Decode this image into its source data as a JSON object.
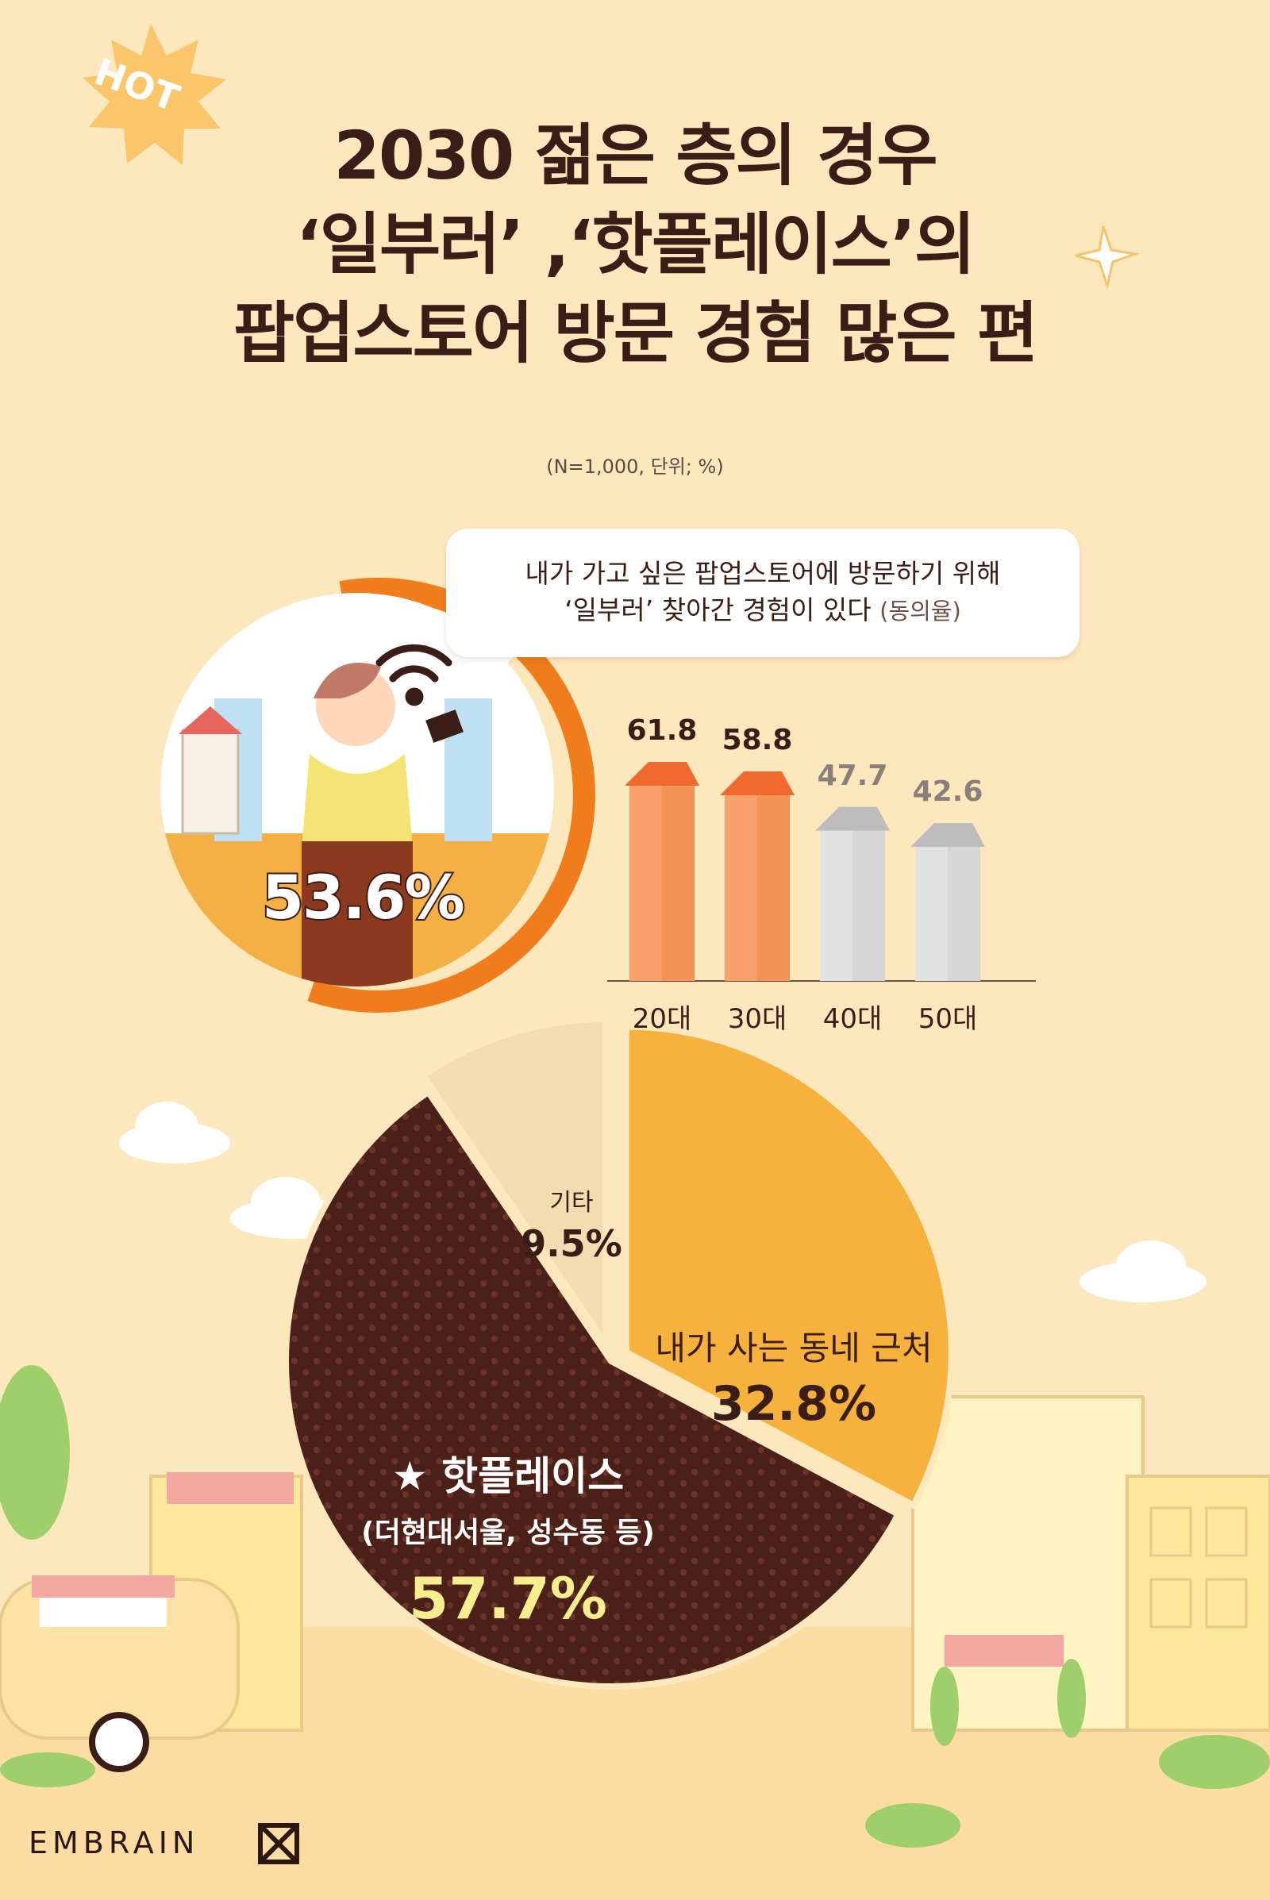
{
  "badge": {
    "hot": "HOT"
  },
  "title": {
    "line1": "2030 젊은 층의 경우",
    "line2": "‘일부러’ ,‘핫플레이스’의",
    "line3": "팝업스토어 방문 경험 많은 편"
  },
  "note": "(N=1,000, 단위; %)",
  "question": {
    "line1": "내가 가고 싶은 팝업스토어에 방문하기 위해",
    "line2": "‘일부러’ 찾아간 경험이 있다",
    "suffix": "(동의율)"
  },
  "overall": {
    "label": "53.6%",
    "value": 53.6
  },
  "chart_data": [
    {
      "type": "bar",
      "categories": [
        "20대",
        "30대",
        "40대",
        "50대"
      ],
      "values": [
        61.8,
        58.8,
        47.7,
        42.6
      ],
      "value_labels": [
        "61.8",
        "58.8",
        "47.7",
        "42.6"
      ],
      "colors": [
        "#f8a06a",
        "#f8a06a",
        "#e2e2e2",
        "#e2e2e2"
      ]
    },
    {
      "type": "pie",
      "slices": [
        {
          "name": "내가 사는 동네 근처",
          "value": 32.8,
          "label": "32.8%",
          "color": "#f6b23d"
        },
        {
          "name": "핫플레이스",
          "sub": "(더현대서울, 성수동 등)",
          "value": 57.7,
          "label": "57.7%",
          "color": "#4a2018"
        },
        {
          "name": "기타",
          "value": 9.5,
          "label": "9.5%",
          "color": "#f3dcb0"
        }
      ]
    }
  ],
  "logo": "EMBRAIN",
  "colors": {
    "background": "#fde8bd",
    "orange": "#f07c1c",
    "dark": "#3a1d16"
  }
}
